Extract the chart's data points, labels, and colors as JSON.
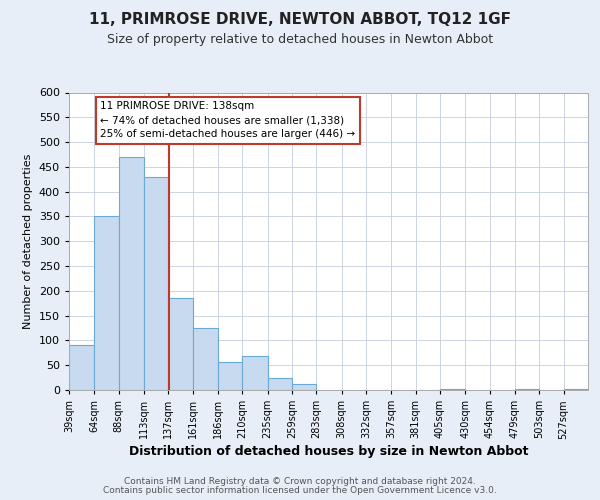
{
  "title": "11, PRIMROSE DRIVE, NEWTON ABBOT, TQ12 1GF",
  "subtitle": "Size of property relative to detached houses in Newton Abbot",
  "xlabel": "Distribution of detached houses by size in Newton Abbot",
  "ylabel": "Number of detached properties",
  "bar_color": "#c8daf0",
  "bar_edge_color": "#6aaad4",
  "background_color": "#e8eef7",
  "plot_background": "#ffffff",
  "grid_color": "#c5cfe0",
  "tick_labels": [
    "39sqm",
    "64sqm",
    "88sqm",
    "113sqm",
    "137sqm",
    "161sqm",
    "186sqm",
    "210sqm",
    "235sqm",
    "259sqm",
    "283sqm",
    "308sqm",
    "332sqm",
    "357sqm",
    "381sqm",
    "405sqm",
    "430sqm",
    "454sqm",
    "479sqm",
    "503sqm",
    "527sqm"
  ],
  "bin_edges": [
    39,
    64,
    88,
    113,
    137,
    161,
    186,
    210,
    235,
    259,
    283,
    308,
    332,
    357,
    381,
    405,
    430,
    454,
    479,
    503,
    527,
    551
  ],
  "bar_heights": [
    90,
    350,
    470,
    430,
    185,
    125,
    57,
    68,
    25,
    13,
    0,
    0,
    0,
    0,
    0,
    3,
    0,
    0,
    3,
    0,
    3
  ],
  "vline_x": 138,
  "vline_color": "#c0392b",
  "annotation_line1": "11 PRIMROSE DRIVE: 138sqm",
  "annotation_line2": "← 74% of detached houses are smaller (1,338)",
  "annotation_line3": "25% of semi-detached houses are larger (446) →",
  "annotation_box_color": "#ffffff",
  "annotation_box_edge": "#c0392b",
  "ylim": [
    0,
    600
  ],
  "yticks": [
    0,
    50,
    100,
    150,
    200,
    250,
    300,
    350,
    400,
    450,
    500,
    550,
    600
  ],
  "footer_line1": "Contains HM Land Registry data © Crown copyright and database right 2024.",
  "footer_line2": "Contains public sector information licensed under the Open Government Licence v3.0."
}
